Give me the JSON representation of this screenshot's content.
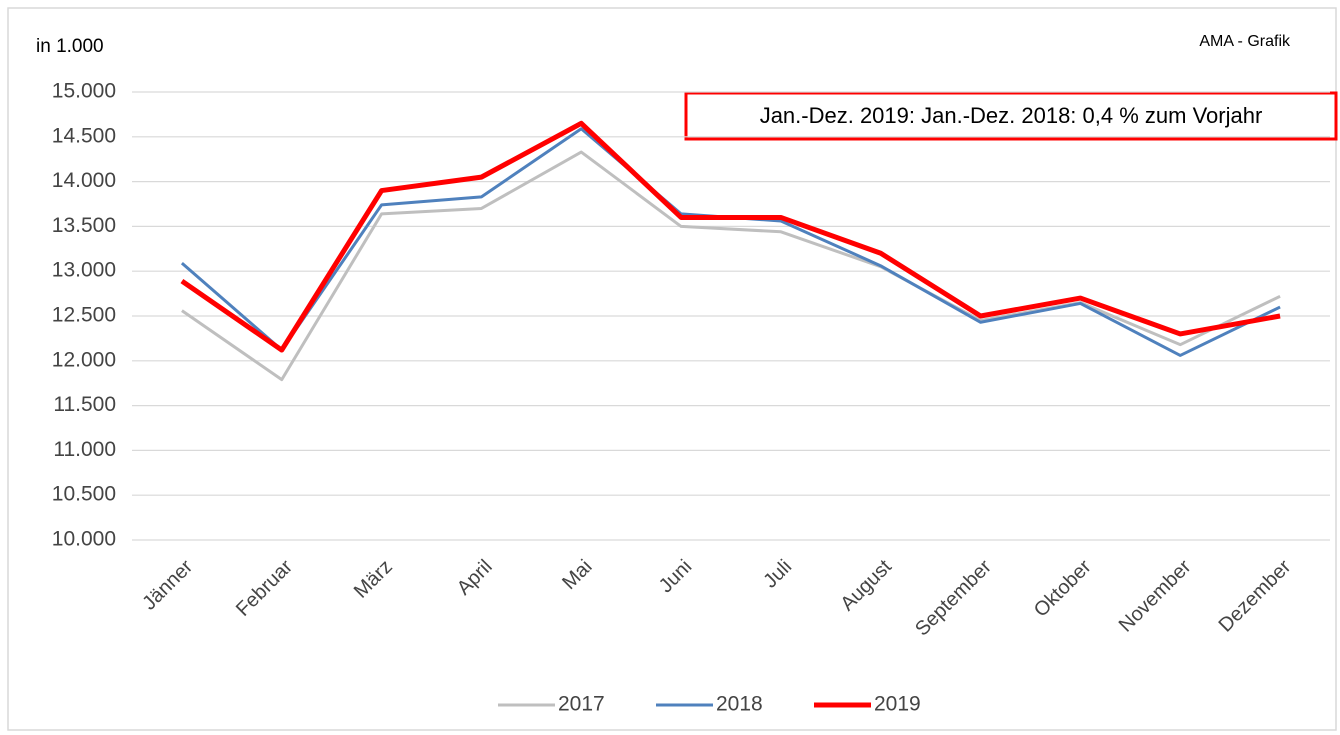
{
  "chart_data": {
    "type": "line",
    "y_label": "in 1.000",
    "source": "AMA - Grafik",
    "annotation": "Jan.-Dez. 2019: Jan.-Dez. 2018: 0,4 % zum Vorjahr",
    "categories": [
      "Jänner",
      "Februar",
      "März",
      "April",
      "Mai",
      "Juni",
      "Juli",
      "August",
      "September",
      "Oktober",
      "November",
      "Dezember"
    ],
    "series": [
      {
        "name": "2017",
        "color": "#bfbfbf",
        "values": [
          12560,
          11790,
          13640,
          13700,
          14330,
          13500,
          13440,
          13050,
          12450,
          12650,
          12180,
          12720
        ]
      },
      {
        "name": "2018",
        "color": "#4f81bd",
        "values": [
          13090,
          12120,
          13740,
          13830,
          14590,
          13640,
          13560,
          13060,
          12430,
          12640,
          12060,
          12600
        ]
      },
      {
        "name": "2019",
        "color": "#ff0000",
        "values": [
          12890,
          12120,
          13900,
          14050,
          14650,
          13600,
          13600,
          13200,
          12500,
          12700,
          12300,
          12500
        ]
      }
    ],
    "ylim": [
      10000,
      15000
    ],
    "yticks": [
      {
        "value": 10000,
        "label": "10.000"
      },
      {
        "value": 10500,
        "label": "10.500"
      },
      {
        "value": 11000,
        "label": "11.000"
      },
      {
        "value": 11500,
        "label": "11.500"
      },
      {
        "value": 12000,
        "label": "12.000"
      },
      {
        "value": 12500,
        "label": "12.500"
      },
      {
        "value": 13000,
        "label": "13.000"
      },
      {
        "value": 13500,
        "label": "13.500"
      },
      {
        "value": 14000,
        "label": "14.000"
      },
      {
        "value": 14500,
        "label": "14.500"
      },
      {
        "value": 15000,
        "label": "15.000"
      }
    ],
    "grid": true,
    "legend": "bottom"
  }
}
